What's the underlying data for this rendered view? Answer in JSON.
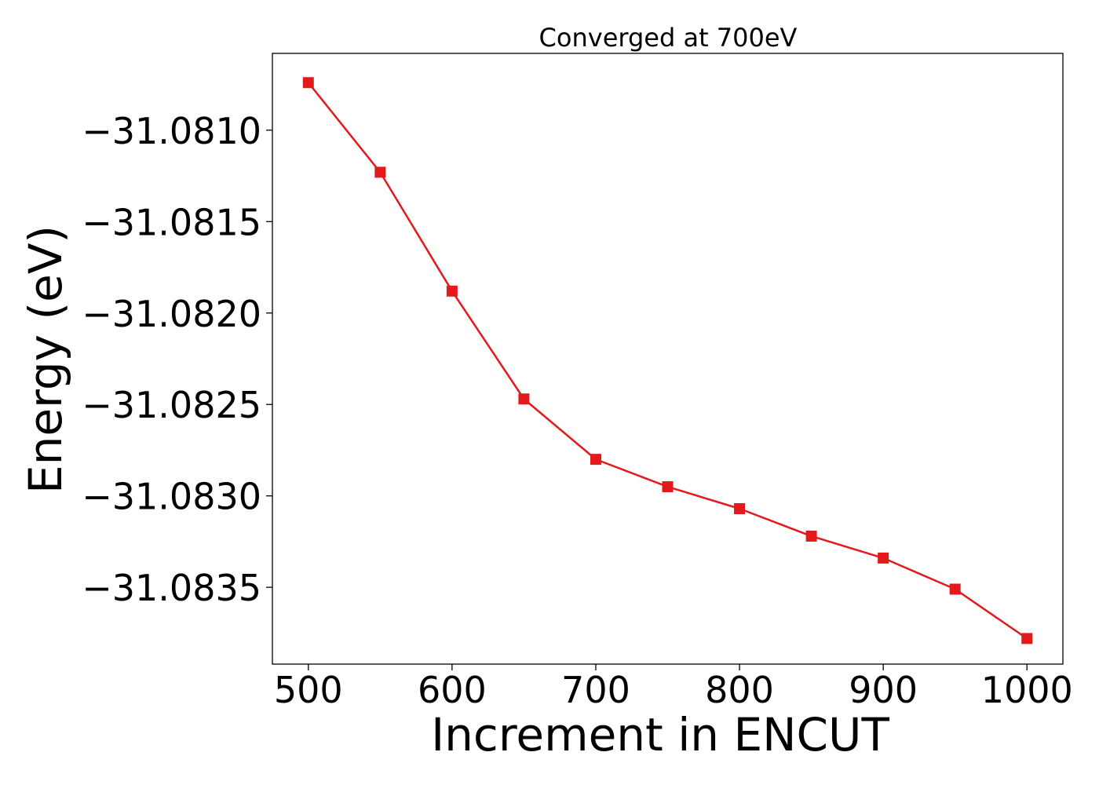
{
  "chart_data": {
    "type": "line",
    "title": "Converged at 700eV",
    "xlabel": "Increment in ENCUT",
    "ylabel": "Energy (eV)",
    "x": [
      500,
      550,
      600,
      650,
      700,
      750,
      800,
      850,
      900,
      950,
      1000
    ],
    "series": [
      {
        "values": [
          -31.08074,
          -31.08123,
          -31.08188,
          -31.08247,
          -31.0828,
          -31.08295,
          -31.08307,
          -31.08322,
          -31.08334,
          -31.08351,
          -31.08378
        ],
        "color": "#e31a1c",
        "marker": "square"
      }
    ],
    "xticks": [
      500,
      600,
      700,
      800,
      900,
      1000
    ],
    "xtick_labels": [
      "500",
      "600",
      "700",
      "800",
      "900",
      "1000"
    ],
    "yticks": [
      -31.081,
      -31.0815,
      -31.082,
      -31.0825,
      -31.083,
      -31.0835
    ],
    "ytick_labels": [
      "−31.0810",
      "−31.0815",
      "−31.0820",
      "−31.0825",
      "−31.0830",
      "−31.0835"
    ],
    "xlim": [
      475,
      1025
    ],
    "ylim": [
      -31.08392,
      -31.08058
    ],
    "grid": false,
    "legend": "none"
  }
}
